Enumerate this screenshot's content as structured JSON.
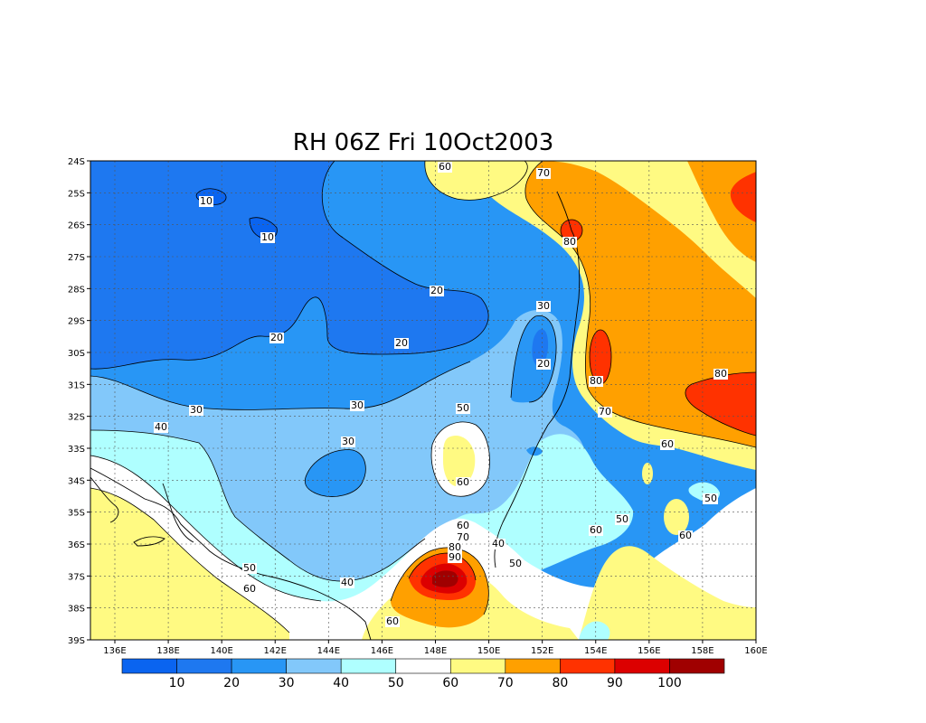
{
  "title": "RH 06Z Fri 10Oct2003",
  "colors": {
    "c0": "#0a64f0",
    "c10": "#1e78f0",
    "c20": "#2896f5",
    "c30": "#82c8fa",
    "c40": "#afffff",
    "c50": "#ffffff",
    "c60": "#fffa82",
    "c70": "#ffa000",
    "c80": "#ff3200",
    "c90": "#dc0000",
    "c100": "#a00000"
  },
  "axes": {
    "lon_ticks": [
      "136E",
      "138E",
      "140E",
      "142E",
      "144E",
      "146E",
      "148E",
      "150E",
      "152E",
      "154E",
      "156E",
      "158E",
      "160E"
    ],
    "lat_ticks": [
      "24S",
      "25S",
      "26S",
      "27S",
      "28S",
      "29S",
      "30S",
      "31S",
      "32S",
      "33S",
      "34S",
      "35S",
      "36S",
      "37S",
      "38S",
      "39S"
    ]
  },
  "colorbar": {
    "labels": [
      "10",
      "20",
      "30",
      "40",
      "50",
      "60",
      "70",
      "80",
      "90",
      "100"
    ]
  },
  "contour_labels": [
    "10",
    "10",
    "20",
    "20",
    "20",
    "30",
    "30",
    "30",
    "40",
    "50",
    "60",
    "70",
    "80",
    "20",
    "30",
    "60",
    "70",
    "80",
    "90",
    "50",
    "40",
    "50",
    "60",
    "50",
    "60",
    "50",
    "60",
    "60",
    "70",
    "80",
    "80",
    "80",
    "60",
    "50",
    "60",
    "50",
    "40"
  ]
}
